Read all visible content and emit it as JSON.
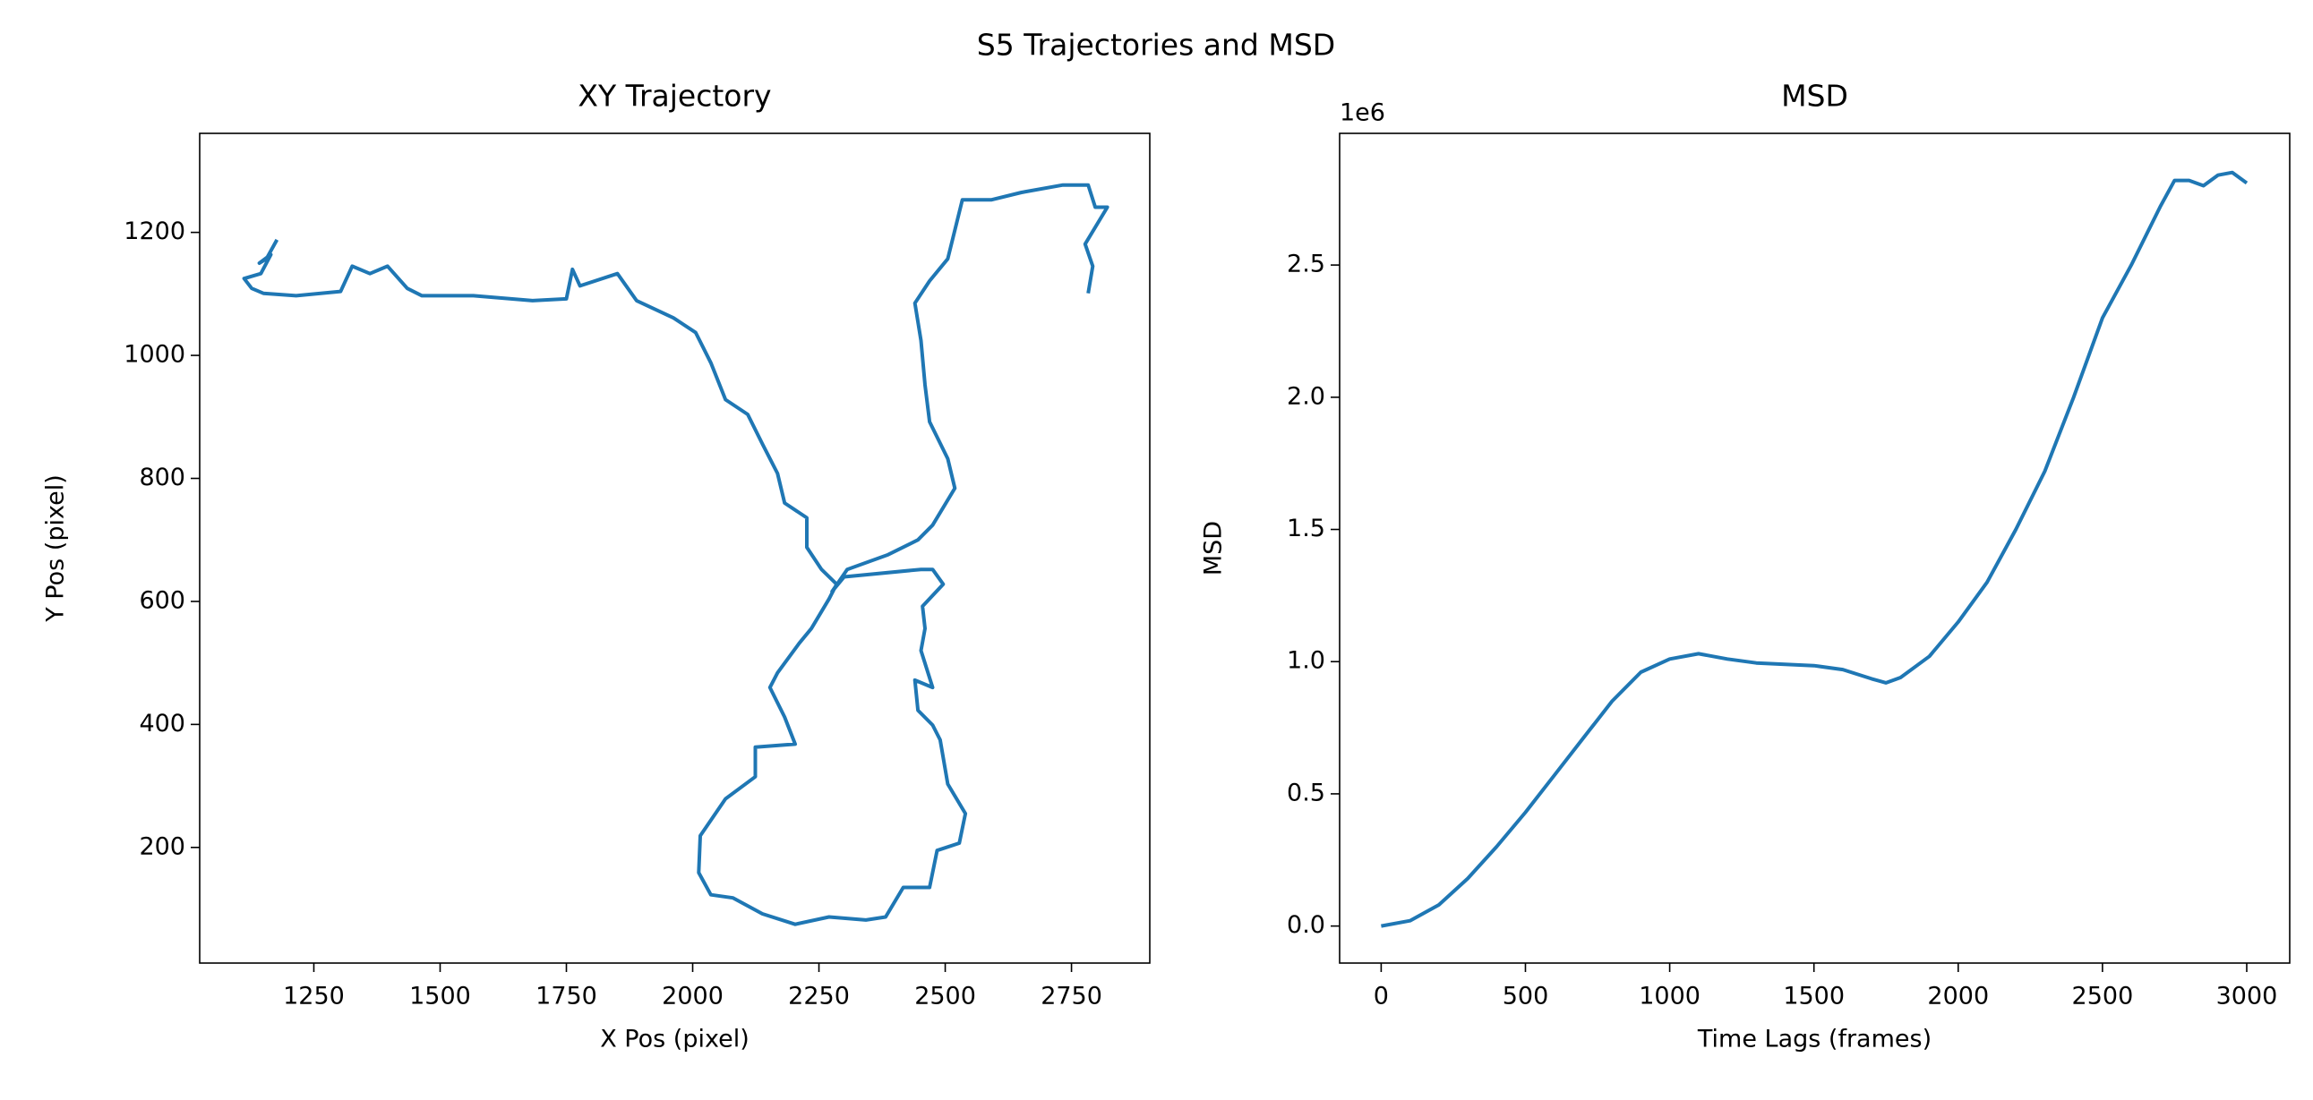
{
  "title": "S5 Trajectories and MSD",
  "chart_data": [
    {
      "type": "line",
      "title": "XY Trajectory",
      "x_label": "X Pos (pixel)",
      "y_label": "Y Pos (pixel)",
      "color": "#1f77b4",
      "xlim": [
        1024,
        2905
      ],
      "ylim": [
        12,
        1361
      ],
      "xticks": [
        1250,
        1500,
        1750,
        2000,
        2250,
        2500,
        2750
      ],
      "yticks": [
        200,
        400,
        600,
        800,
        1000,
        1200
      ],
      "x": [
        1177,
        1156,
        1142,
        1165,
        1145,
        1112,
        1127,
        1150,
        1215,
        1303,
        1326,
        1361,
        1396,
        1435,
        1464,
        1566,
        1683,
        1750,
        1762,
        1777,
        1851,
        1889,
        1962,
        2006,
        2036,
        2065,
        2109,
        2138,
        2168,
        2182,
        2226,
        2226,
        2255,
        2285,
        2270,
        2235,
        2211,
        2168,
        2153,
        2182,
        2203,
        2124,
        2124,
        2065,
        2015,
        2012,
        2036,
        2080,
        2138,
        2203,
        2270,
        2343,
        2382,
        2417,
        2469,
        2484,
        2528,
        2540,
        2505,
        2490,
        2475,
        2446,
        2440,
        2475,
        2452,
        2460,
        2455,
        2496,
        2475,
        2452,
        2300,
        2276,
        2306,
        2387,
        2446,
        2475,
        2519,
        2505,
        2469,
        2460,
        2452,
        2440,
        2469,
        2505,
        2534,
        2592,
        2651,
        2733,
        2783,
        2797,
        2821,
        2777,
        2792,
        2783
      ],
      "values": [
        1188,
        1157,
        1150,
        1164,
        1133,
        1125,
        1109,
        1101,
        1097,
        1104,
        1145,
        1133,
        1145,
        1109,
        1097,
        1097,
        1089,
        1092,
        1140,
        1113,
        1133,
        1089,
        1061,
        1037,
        988,
        928,
        904,
        856,
        808,
        760,
        736,
        688,
        652,
        628,
        604,
        556,
        532,
        484,
        460,
        412,
        368,
        363,
        315,
        279,
        219,
        159,
        123,
        118,
        92,
        75,
        87,
        82,
        87,
        135,
        135,
        195,
        207,
        255,
        303,
        375,
        399,
        423,
        472,
        460,
        520,
        556,
        592,
        628,
        652,
        652,
        640,
        616,
        652,
        676,
        700,
        724,
        784,
        832,
        892,
        952,
        1024,
        1085,
        1121,
        1157,
        1253,
        1253,
        1265,
        1277,
        1277,
        1241,
        1241,
        1181,
        1145,
        1101
      ]
    },
    {
      "type": "line",
      "title": "MSD",
      "x_label": "Time Lags (frames)",
      "y_label": "MSD",
      "y_offset_label": "1e6",
      "color": "#1f77b4",
      "xlim": [
        -144,
        3149
      ],
      "ylim": [
        -140000,
        2998000
      ],
      "xticks": [
        0,
        500,
        1000,
        1500,
        2000,
        2500,
        3000
      ],
      "yticks": [
        {
          "value": 0,
          "label": "0.0"
        },
        {
          "value": 500000,
          "label": "0.5"
        },
        {
          "value": 1000000,
          "label": "1.0"
        },
        {
          "value": 1500000,
          "label": "1.5"
        },
        {
          "value": 2000000,
          "label": "2.0"
        },
        {
          "value": 2500000,
          "label": "2.5"
        }
      ],
      "x": [
        0,
        100,
        200,
        300,
        400,
        500,
        600,
        700,
        800,
        900,
        1000,
        1100,
        1200,
        1300,
        1400,
        1500,
        1600,
        1700,
        1750,
        1800,
        1900,
        2000,
        2100,
        2200,
        2300,
        2400,
        2500,
        2600,
        2700,
        2750,
        2800,
        2850,
        2900,
        2950,
        3000
      ],
      "values": [
        0,
        20000,
        80000,
        180000,
        300000,
        430000,
        570000,
        710000,
        850000,
        960000,
        1010000,
        1030000,
        1010000,
        995000,
        990000,
        985000,
        970000,
        935000,
        920000,
        940000,
        1020000,
        1150000,
        1300000,
        1500000,
        1720000,
        2000000,
        2300000,
        2500000,
        2720000,
        2820000,
        2820000,
        2800000,
        2840000,
        2850000,
        2810000
      ]
    }
  ]
}
